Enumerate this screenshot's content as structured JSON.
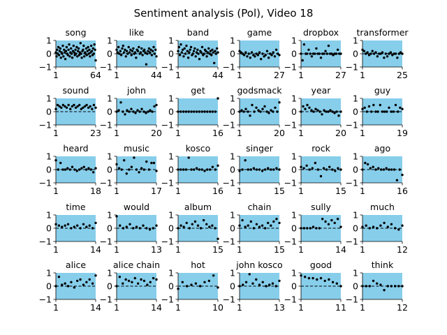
{
  "title": "Sentiment analysis (Pol), Video 18",
  "style": {
    "panel_color": "#87ceeb",
    "point_color": "#000000",
    "zero_line_color": "#000000"
  },
  "chart_data": {
    "type": "scatter",
    "layout": {
      "rows": 5,
      "cols": 6
    },
    "ylim": [
      -1,
      1
    ],
    "yticks": [
      -1,
      0,
      1
    ],
    "zero_line": "dashed",
    "grid": false,
    "legend": "none",
    "panels": [
      {
        "title": "song",
        "xlim": [
          1,
          64
        ],
        "xticks": [
          1,
          64
        ],
        "values": [
          0.1,
          -0.2,
          0.3,
          0.0,
          0.5,
          -0.1,
          0.2,
          0.4,
          -0.3,
          0.1,
          0.0,
          0.6,
          -0.2,
          0.3,
          0.1,
          -0.4,
          0.2,
          0.5,
          0.0,
          -0.1,
          0.3,
          0.7,
          -0.2,
          0.1,
          0.4,
          0.0,
          -0.3,
          0.2,
          0.6,
          0.1,
          -0.1,
          0.3,
          0.0,
          0.5,
          -0.2,
          0.2,
          0.4,
          -0.1,
          0.1,
          0.8,
          0.0,
          -0.3,
          0.2,
          0.3,
          0.6,
          -0.2,
          0.1,
          0.0,
          0.4,
          -0.1,
          0.2,
          0.5,
          0.0,
          0.3,
          -0.2,
          0.1,
          0.6,
          0.2,
          -0.1,
          0.4,
          0.0,
          0.7,
          0.3,
          -0.5
        ]
      },
      {
        "title": "like",
        "xlim": [
          1,
          44
        ],
        "xticks": [
          1,
          44
        ],
        "values": [
          0.3,
          0.1,
          0.5,
          0.0,
          0.2,
          -0.1,
          0.4,
          0.6,
          0.1,
          0.3,
          -0.2,
          0.2,
          0.0,
          0.5,
          0.1,
          0.3,
          -0.1,
          0.2,
          0.4,
          0.0,
          0.1,
          -0.3,
          0.3,
          0.2,
          0.5,
          0.0,
          0.1,
          0.4,
          -0.1,
          0.2,
          0.3,
          0.1,
          -0.8,
          0.0,
          0.2,
          0.4,
          0.1,
          0.3,
          -0.1,
          0.2,
          0.5,
          0.0,
          0.3,
          -0.2
        ]
      },
      {
        "title": "band",
        "xlim": [
          1,
          44
        ],
        "xticks": [
          1,
          44
        ],
        "values": [
          0.2,
          0.5,
          -0.1,
          0.7,
          0.1,
          0.3,
          -0.2,
          0.4,
          0.0,
          0.6,
          0.2,
          -0.3,
          0.1,
          0.3,
          0.5,
          -0.1,
          0.0,
          0.2,
          0.4,
          -0.2,
          0.1,
          0.3,
          0.0,
          -0.4,
          0.2,
          0.1,
          0.5,
          -0.1,
          0.0,
          0.3,
          0.2,
          -0.2,
          0.1,
          0.4,
          0.0,
          0.2,
          -0.1,
          0.3,
          0.1,
          -0.7,
          0.2,
          0.0,
          0.4,
          0.1
        ]
      },
      {
        "title": "game",
        "xlim": [
          1,
          27
        ],
        "xticks": [
          1,
          27
        ],
        "values": [
          0.2,
          0.1,
          0.0,
          -0.1,
          0.1,
          -0.2,
          0.0,
          -0.3,
          0.1,
          -0.1,
          -0.2,
          0.0,
          -0.1,
          0.1,
          -0.4,
          0.0,
          -0.2,
          -0.1,
          0.2,
          -0.3,
          0.0,
          -0.1,
          0.1,
          -0.2,
          0.3,
          0.0,
          -0.1
        ]
      },
      {
        "title": "dropbox",
        "xlim": [
          1,
          27
        ],
        "xticks": [
          1,
          27
        ],
        "values": [
          0.0,
          -0.5,
          0.7,
          0.0,
          0.0,
          0.3,
          0.0,
          -0.2,
          0.0,
          0.0,
          0.4,
          0.0,
          0.0,
          -0.3,
          0.0,
          0.0,
          0.2,
          0.0,
          0.6,
          0.0,
          0.0,
          -0.1,
          0.0,
          0.0,
          0.3,
          0.0,
          0.0
        ]
      },
      {
        "title": "transformer",
        "xlim": [
          1,
          25
        ],
        "xticks": [
          1,
          25
        ],
        "values": [
          0.3,
          0.2,
          0.0,
          0.1,
          -0.1,
          0.0,
          0.2,
          0.0,
          0.1,
          -0.2,
          0.0,
          0.0,
          0.1,
          -0.3,
          0.0,
          -0.2,
          0.0,
          0.1,
          -0.1,
          0.0,
          0.0,
          -0.3,
          0.0,
          0.1,
          0.0
        ]
      },
      {
        "title": "sound",
        "xlim": [
          1,
          23
        ],
        "xticks": [
          1,
          23
        ],
        "values": [
          0.2,
          0.5,
          0.4,
          0.3,
          0.5,
          0.4,
          0.3,
          0.5,
          0.2,
          0.4,
          0.5,
          0.3,
          0.4,
          0.5,
          0.2,
          0.3,
          0.4,
          0.5,
          0.3,
          0.4,
          0.2,
          0.5,
          0.3
        ]
      },
      {
        "title": "john",
        "xlim": [
          1,
          20
        ],
        "xticks": [
          1,
          20
        ],
        "values": [
          0.0,
          0.1,
          0.7,
          0.0,
          -0.2,
          0.1,
          0.0,
          0.2,
          0.0,
          -0.1,
          0.1,
          0.0,
          0.2,
          0.0,
          -0.1,
          0.0,
          0.1,
          0.0,
          0.4,
          0.5
        ]
      },
      {
        "title": "get",
        "xlim": [
          1,
          16
        ],
        "xticks": [
          1,
          16
        ],
        "values": [
          0.0,
          0.0,
          0.0,
          0.0,
          0.0,
          0.0,
          0.0,
          0.0,
          0.0,
          0.0,
          0.0,
          0.0,
          0.0,
          0.0,
          0.0,
          1.0
        ]
      },
      {
        "title": "godsmack",
        "xlim": [
          1,
          20
        ],
        "xticks": [
          1,
          20
        ],
        "values": [
          0.0,
          0.1,
          0.0,
          0.2,
          0.0,
          -0.3,
          0.5,
          0.0,
          0.3,
          0.1,
          0.0,
          0.2,
          0.4,
          0.0,
          -0.1,
          0.1,
          0.0,
          0.3,
          0.0,
          0.7
        ]
      },
      {
        "title": "year",
        "xlim": [
          1,
          20
        ],
        "xticks": [
          1,
          20
        ],
        "values": [
          0.0,
          0.4,
          0.2,
          0.5,
          0.3,
          0.1,
          0.0,
          0.2,
          0.1,
          0.0,
          -0.2,
          0.1,
          0.0,
          0.0,
          0.1,
          0.0,
          -0.1,
          0.0,
          -0.3,
          0.0
        ]
      },
      {
        "title": "guy",
        "xlim": [
          1,
          19
        ],
        "xticks": [
          1,
          19
        ],
        "values": [
          0.2,
          0.3,
          0.0,
          0.4,
          0.0,
          0.5,
          0.0,
          0.0,
          0.5,
          0.0,
          0.0,
          0.0,
          0.3,
          0.0,
          0.0,
          0.5,
          0.0,
          0.3,
          0.2
        ]
      },
      {
        "title": "heard",
        "xlim": [
          1,
          18
        ],
        "xticks": [
          1,
          18
        ],
        "values": [
          0.7,
          0.0,
          0.5,
          0.0,
          0.0,
          0.1,
          0.0,
          0.2,
          0.0,
          -0.1,
          0.0,
          0.1,
          0.2,
          0.0,
          0.1,
          0.0,
          -0.2,
          0.1
        ]
      },
      {
        "title": "music",
        "xlim": [
          1,
          17
        ],
        "xticks": [
          1,
          17
        ],
        "values": [
          0.4,
          0.1,
          0.0,
          0.7,
          -0.3,
          0.0,
          0.2,
          0.9,
          0.0,
          -0.2,
          0.1,
          0.0,
          0.6,
          0.0,
          0.5,
          0.5,
          -0.1
        ]
      },
      {
        "title": "kosco",
        "xlim": [
          1,
          16
        ],
        "xticks": [
          1,
          16
        ],
        "values": [
          0.0,
          0.0,
          0.0,
          0.0,
          0.9,
          0.0,
          0.0,
          0.1,
          0.0,
          0.0,
          -0.1,
          0.0,
          0.0,
          0.2,
          0.0,
          0.3
        ]
      },
      {
        "title": "singer",
        "xlim": [
          1,
          15
        ],
        "xticks": [
          1,
          15
        ],
        "values": [
          -0.1,
          0.0,
          0.7,
          0.0,
          0.0,
          0.1,
          0.0,
          0.0,
          -0.1,
          0.0,
          0.1,
          0.0,
          0.0,
          0.1,
          0.0
        ]
      },
      {
        "title": "rock",
        "xlim": [
          1,
          15
        ],
        "xticks": [
          1,
          15
        ],
        "values": [
          0.2,
          0.1,
          0.3,
          0.0,
          0.1,
          0.5,
          0.0,
          -0.5,
          0.1,
          0.0,
          0.2,
          0.0,
          -0.1,
          0.1,
          0.0
        ]
      },
      {
        "title": "ago",
        "xlim": [
          1,
          16
        ],
        "xticks": [
          1,
          16
        ],
        "values": [
          0.0,
          0.5,
          0.4,
          0.1,
          0.2,
          0.0,
          0.1,
          0.0,
          0.0,
          0.1,
          0.0,
          0.0,
          0.0,
          -0.8,
          0.0,
          -0.4
        ]
      },
      {
        "title": "time",
        "xlim": [
          1,
          14
        ],
        "xticks": [
          1,
          14
        ],
        "values": [
          0.3,
          0.2,
          0.1,
          0.2,
          0.3,
          0.0,
          0.1,
          0.2,
          0.0,
          0.3,
          0.1,
          0.2,
          0.0,
          0.4
        ]
      },
      {
        "title": "would",
        "xlim": [
          1,
          13
        ],
        "xticks": [
          1,
          13
        ],
        "values": [
          0.9,
          0.2,
          0.0,
          0.1,
          0.3,
          0.0,
          0.1,
          0.0,
          0.2,
          0.0,
          -0.1,
          0.0,
          0.2
        ]
      },
      {
        "title": "album",
        "xlim": [
          1,
          15
        ],
        "xticks": [
          1,
          15
        ],
        "values": [
          0.0,
          0.2,
          0.1,
          0.4,
          0.0,
          0.3,
          0.5,
          0.2,
          0.0,
          0.6,
          0.3,
          0.1,
          0.2,
          0.0,
          -0.8
        ]
      },
      {
        "title": "chain",
        "xlim": [
          1,
          15
        ],
        "xticks": [
          1,
          15
        ],
        "values": [
          0.2,
          0.6,
          0.1,
          0.2,
          0.5,
          0.0,
          0.3,
          0.1,
          0.2,
          0.0,
          0.4,
          0.2,
          0.5,
          0.7,
          0.4
        ]
      },
      {
        "title": "sully",
        "xlim": [
          1,
          14
        ],
        "xticks": [
          1,
          14
        ],
        "values": [
          0.0,
          0.0,
          0.0,
          0.0,
          0.1,
          0.0,
          0.0,
          0.7,
          0.5,
          0.3,
          0.6,
          0.4,
          0.7,
          0.1
        ]
      },
      {
        "title": "much",
        "xlim": [
          1,
          12
        ],
        "xticks": [
          1,
          12
        ],
        "values": [
          0.1,
          0.2,
          0.0,
          0.1,
          0.0,
          0.2,
          0.4,
          0.1,
          0.3,
          0.0,
          -0.1,
          0.2
        ]
      },
      {
        "title": "alice",
        "xlim": [
          1,
          14
        ],
        "xticks": [
          1,
          14
        ],
        "values": [
          0.0,
          0.7,
          0.1,
          0.2,
          0.0,
          0.3,
          -0.1,
          0.4,
          0.5,
          0.1,
          0.3,
          0.5,
          0.2,
          0.8
        ]
      },
      {
        "title": "alice chain",
        "xlim": [
          1,
          14
        ],
        "xticks": [
          1,
          14
        ],
        "values": [
          0.0,
          0.7,
          0.2,
          0.5,
          0.4,
          0.3,
          0.6,
          0.2,
          0.5,
          0.4,
          0.1,
          0.3,
          0.6,
          0.5
        ]
      },
      {
        "title": "hot",
        "xlim": [
          1,
          10
        ],
        "xticks": [
          1,
          10
        ],
        "values": [
          -0.2,
          0.3,
          0.0,
          0.1,
          0.2,
          0.0,
          0.3,
          0.4,
          0.8,
          -0.1
        ]
      },
      {
        "title": "john kosco",
        "xlim": [
          1,
          13
        ],
        "xticks": [
          1,
          13
        ],
        "values": [
          0.0,
          0.1,
          0.3,
          0.9,
          0.2,
          0.5,
          0.1,
          0.3,
          0.0,
          0.1,
          0.2,
          0.0,
          0.4
        ]
      },
      {
        "title": "good",
        "xlim": [
          1,
          11
        ],
        "xticks": [
          1,
          11
        ],
        "values": [
          0.8,
          0.7,
          0.6,
          0.6,
          0.5,
          0.6,
          0.4,
          0.5,
          0.3,
          0.2,
          0.0
        ]
      },
      {
        "title": "think",
        "xlim": [
          1,
          12
        ],
        "xticks": [
          1,
          12
        ],
        "values": [
          0.0,
          0.0,
          0.0,
          0.4,
          0.2,
          0.1,
          -0.3,
          0.0,
          0.0,
          0.0,
          0.0,
          0.0
        ]
      }
    ]
  }
}
